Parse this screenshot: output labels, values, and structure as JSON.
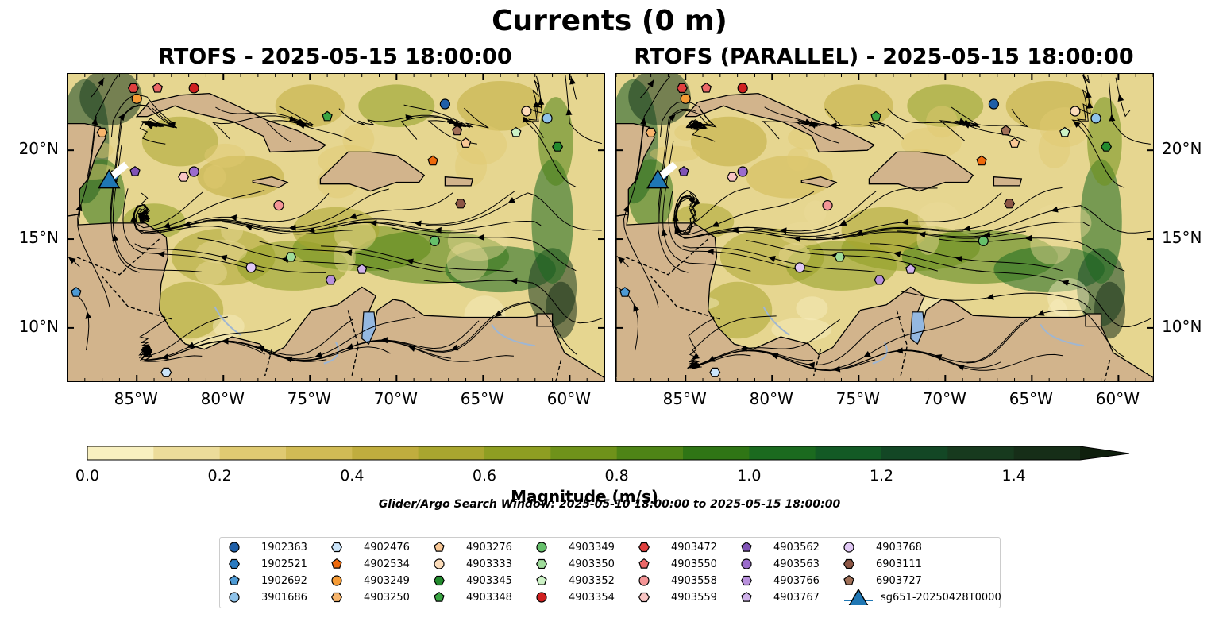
{
  "title": "Currents (0 m)",
  "panels": [
    {
      "title": "RTOFS - 2025-05-15 18:00:00"
    },
    {
      "title": "RTOFS (PARALLEL) - 2025-05-15 18:00:00"
    }
  ],
  "map_extent": {
    "lon": [
      -89,
      -58
    ],
    "lat": [
      7,
      24.3
    ]
  },
  "lon_ticks": [
    "85°W",
    "80°W",
    "75°W",
    "70°W",
    "65°W",
    "60°W"
  ],
  "lat_ticks": [
    "20°N",
    "15°N",
    "10°N"
  ],
  "colorbar": {
    "label": "Magnitude (m/s)",
    "range": [
      0,
      1.5
    ],
    "step": 0.1,
    "extend": "max",
    "ticks": [
      "0.0",
      "0.2",
      "0.4",
      "0.6",
      "0.8",
      "1.0",
      "1.2",
      "1.4"
    ],
    "colors": [
      "#f8f0c0",
      "#ecdc9a",
      "#dfca72",
      "#d1bb55",
      "#c0ad3e",
      "#a9a62f",
      "#8e9e22",
      "#6f921a",
      "#4e8416",
      "#2f7515",
      "#1b6a1f",
      "#135a25",
      "#134725",
      "#173a1e",
      "#162e18",
      "#0f1f0d"
    ]
  },
  "search_window": "Glider/Argo Search Window: 2025-05-10 18:00:00 to 2025-05-15 18:00:00",
  "legend": [
    {
      "label": "1902363",
      "marker": "circle",
      "color": "#1f5fa8"
    },
    {
      "label": "1902521",
      "marker": "hexagon",
      "color": "#2b7bc1"
    },
    {
      "label": "1902692",
      "marker": "pentagon",
      "color": "#4d9ad4"
    },
    {
      "label": "3901686",
      "marker": "circle",
      "color": "#8fc3ea"
    },
    {
      "label": "4902476",
      "marker": "hexagon",
      "color": "#cbe5fa"
    },
    {
      "label": "4902534",
      "marker": "pentagon",
      "color": "#ee6a0c"
    },
    {
      "label": "4903249",
      "marker": "circle",
      "color": "#f59b35"
    },
    {
      "label": "4903250",
      "marker": "hexagon",
      "color": "#f7b56c"
    },
    {
      "label": "4903276",
      "marker": "pentagon",
      "color": "#f9c896"
    },
    {
      "label": "4903333",
      "marker": "circle",
      "color": "#fcdcba"
    },
    {
      "label": "4903345",
      "marker": "hexagon",
      "color": "#238b2e"
    },
    {
      "label": "4903348",
      "marker": "pentagon",
      "color": "#3aa543"
    },
    {
      "label": "4903349",
      "marker": "circle",
      "color": "#66c06b"
    },
    {
      "label": "4903350",
      "marker": "hexagon",
      "color": "#9fdc9a"
    },
    {
      "label": "4903352",
      "marker": "pentagon",
      "color": "#ccf2c5"
    },
    {
      "label": "4903354",
      "marker": "circle",
      "color": "#d02020"
    },
    {
      "label": "4903472",
      "marker": "hexagon",
      "color": "#e0403e"
    },
    {
      "label": "4903550",
      "marker": "pentagon",
      "color": "#ec6868"
    },
    {
      "label": "4903558",
      "marker": "circle",
      "color": "#f49596"
    },
    {
      "label": "4903559",
      "marker": "hexagon",
      "color": "#f9c5c4"
    },
    {
      "label": "4903562",
      "marker": "pentagon",
      "color": "#8053b6"
    },
    {
      "label": "4903563",
      "marker": "circle",
      "color": "#9b6ccd"
    },
    {
      "label": "4903766",
      "marker": "hexagon",
      "color": "#b890dc"
    },
    {
      "label": "4903767",
      "marker": "pentagon",
      "color": "#d0b2ea"
    },
    {
      "label": "4903768",
      "marker": "circle",
      "color": "#e1c9f5"
    },
    {
      "label": "6903111",
      "marker": "hexagon",
      "color": "#8c5645"
    },
    {
      "label": "6903727",
      "marker": "pentagon",
      "color": "#a07058"
    },
    {
      "label": "sg651-20250428T0000",
      "marker": "triangle",
      "color": "#1f77b4"
    }
  ],
  "floats": [
    {
      "id": "1902363",
      "lon": -67.2,
      "lat": 22.6
    },
    {
      "id": "1902521",
      "lon": -86.3,
      "lat": 18.6
    },
    {
      "id": "1902692",
      "lon": -88.5,
      "lat": 12.0
    },
    {
      "id": "3901686",
      "lon": -61.3,
      "lat": 21.8
    },
    {
      "id": "4902476",
      "lon": -83.3,
      "lat": 7.5
    },
    {
      "id": "4902534",
      "lon": -67.9,
      "lat": 19.4
    },
    {
      "id": "4903249",
      "lon": -85.0,
      "lat": 22.9
    },
    {
      "id": "4903250",
      "lon": -87.0,
      "lat": 21.0
    },
    {
      "id": "4903276",
      "lon": -66.0,
      "lat": 20.4
    },
    {
      "id": "4903333",
      "lon": -62.5,
      "lat": 22.2
    },
    {
      "id": "4903345",
      "lon": -60.7,
      "lat": 20.2
    },
    {
      "id": "4903348",
      "lon": -74.0,
      "lat": 21.9
    },
    {
      "id": "4903349",
      "lon": -67.8,
      "lat": 14.9
    },
    {
      "id": "4903350",
      "lon": -76.1,
      "lat": 14.0
    },
    {
      "id": "4903352",
      "lon": -63.1,
      "lat": 21.0
    },
    {
      "id": "4903354",
      "lon": -81.7,
      "lat": 23.5
    },
    {
      "id": "4903472",
      "lon": -85.2,
      "lat": 23.5
    },
    {
      "id": "4903550",
      "lon": -83.8,
      "lat": 23.5
    },
    {
      "id": "4903558",
      "lon": -76.8,
      "lat": 16.9
    },
    {
      "id": "4903559",
      "lon": -82.3,
      "lat": 18.5
    },
    {
      "id": "4903562",
      "lon": -85.1,
      "lat": 18.8
    },
    {
      "id": "4903563",
      "lon": -81.7,
      "lat": 18.8
    },
    {
      "id": "4903766",
      "lon": -73.8,
      "lat": 12.7
    },
    {
      "id": "4903767",
      "lon": -72.0,
      "lat": 13.3
    },
    {
      "id": "4903768",
      "lon": -78.4,
      "lat": 13.4
    },
    {
      "id": "6903111",
      "lon": -66.3,
      "lat": 17.0
    },
    {
      "id": "6903727",
      "lon": -66.5,
      "lat": 21.1
    }
  ],
  "glider": {
    "label": "sg651-20250428T0000",
    "track": [
      {
        "lon": -86.6,
        "lat": 18.4
      },
      {
        "lon": -85.6,
        "lat": 19.2
      }
    ]
  }
}
